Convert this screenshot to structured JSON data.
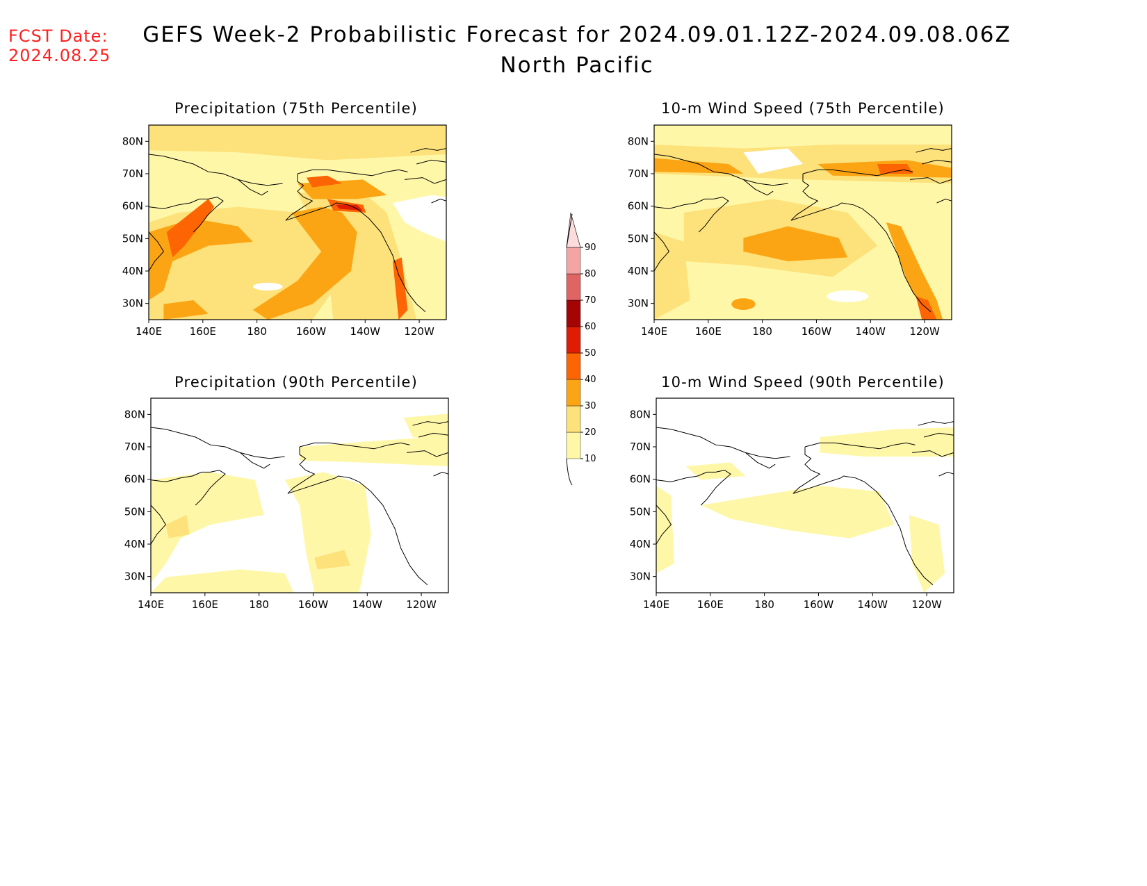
{
  "header": {
    "fcst_label": "FCST Date:",
    "fcst_date": "2024.08.25",
    "title": "GEFS Week-2 Probabilistic Forecast for 2024.09.01.12Z-2024.09.08.06Z",
    "subtitle": "North Pacific"
  },
  "colors": {
    "c10": "#fff7a8",
    "c20": "#fde17a",
    "c30": "#fca514",
    "c40": "#fc6404",
    "c50": "#e01c04",
    "c60": "#a40404",
    "c70": "#e06464",
    "c80": "#f4a4a4",
    "c90": "#fcdcdc"
  },
  "colorbar": {
    "levels": [
      "10",
      "20",
      "30",
      "40",
      "50",
      "60",
      "70",
      "80",
      "90"
    ]
  },
  "axes": {
    "lon_ticks": [
      "140E",
      "160E",
      "180",
      "160W",
      "140W",
      "120W"
    ],
    "lat_ticks": [
      "80N",
      "70N",
      "60N",
      "50N",
      "40N",
      "30N"
    ]
  },
  "panels": [
    {
      "id": "precip-75",
      "title": "Precipitation (75th Percentile)"
    },
    {
      "id": "wind-75",
      "title": "10-m Wind Speed (75th Percentile)"
    },
    {
      "id": "precip-90",
      "title": "Precipitation (90th Percentile)"
    },
    {
      "id": "wind-90",
      "title": "10-m Wind Speed (90th Percentile)"
    }
  ]
}
